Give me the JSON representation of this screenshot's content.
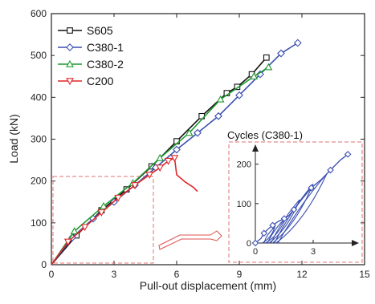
{
  "chart_data": [
    {
      "type": "line",
      "xlabel": "Pull-out displacement (mm)",
      "ylabel": "Load (kN)",
      "xlim": [
        0,
        15
      ],
      "ylim": [
        0,
        600
      ],
      "xticks": [
        "0",
        "3",
        "6",
        "9",
        "12",
        "15"
      ],
      "yticks": [
        "0",
        "100",
        "200",
        "300",
        "400",
        "500",
        "600"
      ],
      "legend_position": "top-left",
      "series": [
        {
          "name": "S605",
          "color": "#111111",
          "marker": "square",
          "x": [
            0,
            1.2,
            2.4,
            3.6,
            4.8,
            6.0,
            7.2,
            8.4,
            8.9,
            9.6,
            10.3
          ],
          "y": [
            0,
            70,
            130,
            180,
            235,
            295,
            355,
            410,
            425,
            455,
            495
          ]
        },
        {
          "name": "C380-1",
          "color": "#3a4fb0",
          "marker": "diamond",
          "x": [
            0,
            1.0,
            2.0,
            3.0,
            4.0,
            5.0,
            6.0,
            7.0,
            8.0,
            9.0,
            10.0,
            11.0,
            11.8
          ],
          "y": [
            0,
            65,
            110,
            150,
            190,
            232,
            275,
            315,
            355,
            405,
            455,
            505,
            530
          ]
        },
        {
          "name": "C380-2",
          "color": "#1f9a2e",
          "marker": "triangle-up",
          "x": [
            0,
            1.1,
            2.5,
            3.9,
            5.2,
            6.6,
            8.1,
            9.7,
            10.4
          ],
          "y": [
            0,
            80,
            140,
            195,
            255,
            315,
            395,
            450,
            472
          ]
        },
        {
          "name": "C200",
          "color": "#e0262a",
          "marker": "triangle-down",
          "x": [
            0,
            0.8,
            1.6,
            2.4,
            3.2,
            4.0,
            4.7,
            5.2,
            5.6,
            5.9,
            6.0,
            6.4,
            6.8,
            7.0
          ],
          "y": [
            0,
            55,
            90,
            125,
            160,
            190,
            215,
            232,
            248,
            255,
            215,
            198,
            185,
            175
          ]
        }
      ]
    },
    {
      "type": "line",
      "title": "Cycles (C380-1)",
      "xlim": [
        0,
        5
      ],
      "ylim": [
        0,
        240
      ],
      "xticks": [
        "0",
        "3"
      ],
      "yticks": [
        "0",
        "100",
        "200"
      ],
      "series": [
        {
          "color": "#3a4fb0",
          "marker": "diamond",
          "x": [
            0,
            0.3,
            0.45,
            0.65,
            0.9,
            1.2,
            1.5,
            1.75,
            2.0,
            2.4,
            2.9,
            3.4,
            3.9,
            4.4,
            4.8
          ],
          "y": [
            0,
            12,
            25,
            35,
            45,
            55,
            62,
            70,
            85,
            110,
            140,
            160,
            185,
            210,
            225
          ]
        }
      ]
    }
  ]
}
